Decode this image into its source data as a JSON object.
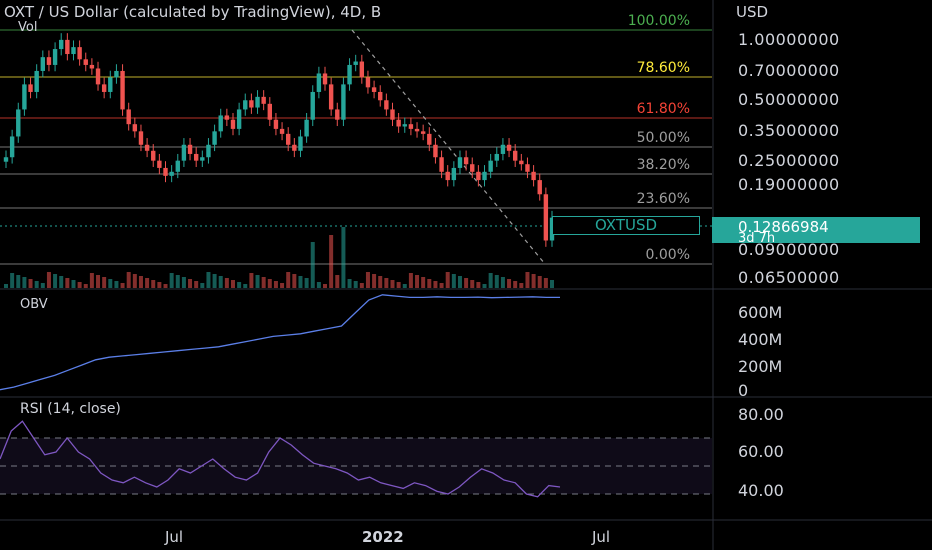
{
  "header": {
    "title": "OXT / US Dollar (calculated by TradingView), 4D, B",
    "volume_label": "Vol",
    "currency": "USD"
  },
  "chart_data": [
    {
      "type": "candlestick",
      "title": "OXT / US Dollar (calculated by TradingView), 4D, B",
      "symbol": "OXTUSD",
      "interval": "4D",
      "last_price": "0.12866984",
      "countdown": "3d 7h",
      "y_scale": "log",
      "y_ticks": [
        "1.00000000",
        "0.70000000",
        "0.50000000",
        "0.35000000",
        "0.25000000",
        "0.19000000",
        "0.13000000",
        "0.09000000",
        "0.06500000"
      ],
      "x_ticks": [
        "Jul",
        "2022",
        "Jul"
      ],
      "fibonacci": [
        {
          "label": "100.00%",
          "color": "#4caf50"
        },
        {
          "label": "78.60%",
          "color": "#ffeb3b"
        },
        {
          "label": "61.80%",
          "color": "#f44336"
        },
        {
          "label": "50.00%",
          "color": "#9e9e9e"
        },
        {
          "label": "38.20%",
          "color": "#9e9e9e"
        },
        {
          "label": "23.60%",
          "color": "#9e9e9e"
        },
        {
          "label": "0.00%",
          "color": "#9e9e9e"
        }
      ],
      "close_series_approx": [
        0.26,
        0.33,
        0.45,
        0.6,
        0.55,
        0.7,
        0.82,
        0.75,
        0.9,
        1.0,
        0.85,
        0.92,
        0.8,
        0.75,
        0.72,
        0.6,
        0.55,
        0.65,
        0.7,
        0.45,
        0.38,
        0.35,
        0.3,
        0.28,
        0.25,
        0.23,
        0.21,
        0.22,
        0.25,
        0.3,
        0.27,
        0.25,
        0.26,
        0.3,
        0.35,
        0.42,
        0.4,
        0.36,
        0.45,
        0.5,
        0.46,
        0.52,
        0.48,
        0.4,
        0.36,
        0.34,
        0.3,
        0.28,
        0.33,
        0.4,
        0.55,
        0.68,
        0.6,
        0.45,
        0.4,
        0.6,
        0.75,
        0.78,
        0.65,
        0.58,
        0.55,
        0.5,
        0.45,
        0.4,
        0.37,
        0.38,
        0.36,
        0.35,
        0.34,
        0.3,
        0.26,
        0.22,
        0.2,
        0.23,
        0.26,
        0.24,
        0.22,
        0.2,
        0.22,
        0.25,
        0.27,
        0.3,
        0.28,
        0.25,
        0.24,
        0.22,
        0.2,
        0.17,
        0.1,
        0.13
      ],
      "colors": {
        "up": "#26a69a",
        "down": "#ef5350"
      }
    },
    {
      "type": "line",
      "title": "OBV",
      "y_ticks": [
        "600M",
        "400M",
        "200M",
        "0"
      ],
      "values_millions": [
        10,
        30,
        60,
        90,
        120,
        160,
        200,
        240,
        260,
        270,
        280,
        290,
        300,
        310,
        320,
        330,
        340,
        360,
        380,
        400,
        420,
        430,
        440,
        460,
        480,
        500,
        600,
        700,
        740,
        730,
        720,
        720,
        725,
        720,
        720,
        722,
        718,
        720,
        722,
        725,
        720,
        720
      ],
      "color": "#5b7fe8"
    },
    {
      "type": "line",
      "title": "RSI (14, close)",
      "y_ticks": [
        "80.00",
        "60.00",
        "40.00"
      ],
      "band": [
        30,
        70
      ],
      "values": [
        55,
        75,
        82,
        70,
        58,
        60,
        70,
        60,
        55,
        45,
        40,
        38,
        42,
        38,
        35,
        40,
        48,
        45,
        50,
        55,
        48,
        42,
        40,
        45,
        60,
        70,
        65,
        58,
        52,
        50,
        48,
        45,
        40,
        42,
        38,
        36,
        34,
        38,
        36,
        32,
        30,
        35,
        42,
        48,
        45,
        40,
        38,
        30,
        28,
        36,
        35
      ],
      "color": "#7e57c2"
    }
  ],
  "labels": {
    "obv": "OBV",
    "rsi": "RSI (14, close)",
    "symbol_tag": "OXTUSD",
    "price_tag": "0.12866984",
    "countdown": "3d 7h"
  }
}
